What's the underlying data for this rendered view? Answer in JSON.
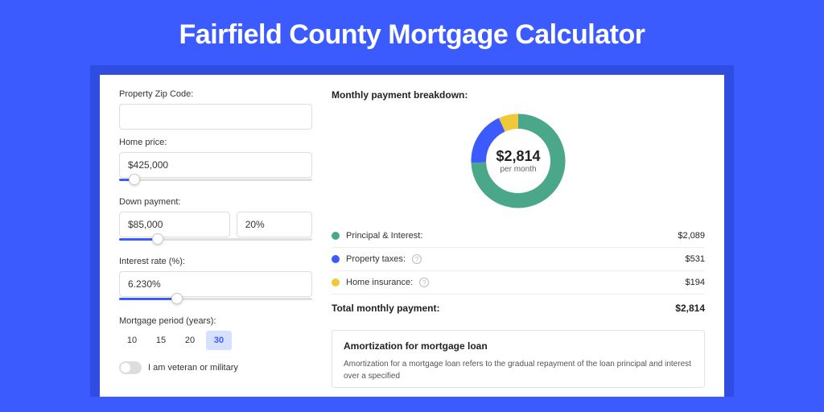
{
  "title": "Fairfield County Mortgage Calculator",
  "form": {
    "zip_label": "Property Zip Code:",
    "zip_value": "",
    "home_price_label": "Home price:",
    "home_price_value": "$425,000",
    "home_price_slider_pct": 8,
    "down_payment_label": "Down payment:",
    "down_payment_value": "$85,000",
    "down_payment_pct": "20%",
    "down_payment_slider_pct": 20,
    "interest_label": "Interest rate (%):",
    "interest_value": "6.230%",
    "interest_slider_pct": 30,
    "period_label": "Mortgage period (years):",
    "periods": [
      "10",
      "15",
      "20",
      "30"
    ],
    "period_active": "30",
    "veteran_label": "I am veteran or military"
  },
  "breakdown": {
    "heading": "Monthly payment breakdown:",
    "donut": {
      "value": "$2,814",
      "sub": "per month",
      "segments": [
        {
          "label": "Principal & Interest:",
          "color": "#4aa789",
          "amount": "$2,089",
          "pct": 74.2
        },
        {
          "label": "Property taxes:",
          "color": "#3b5bff",
          "amount": "$531",
          "pct": 18.9,
          "info": true
        },
        {
          "label": "Home insurance:",
          "color": "#f0c93a",
          "amount": "$194",
          "pct": 6.9,
          "info": true
        }
      ]
    },
    "total_label": "Total monthly payment:",
    "total_value": "$2,814"
  },
  "amort": {
    "heading": "Amortization for mortgage loan",
    "text": "Amortization for a mortgage loan refers to the gradual repayment of the loan principal and interest over a specified"
  },
  "style": {
    "bg": "#3b5bff",
    "card_wrap_bg": "#2f4de0",
    "card_bg": "#ffffff"
  }
}
